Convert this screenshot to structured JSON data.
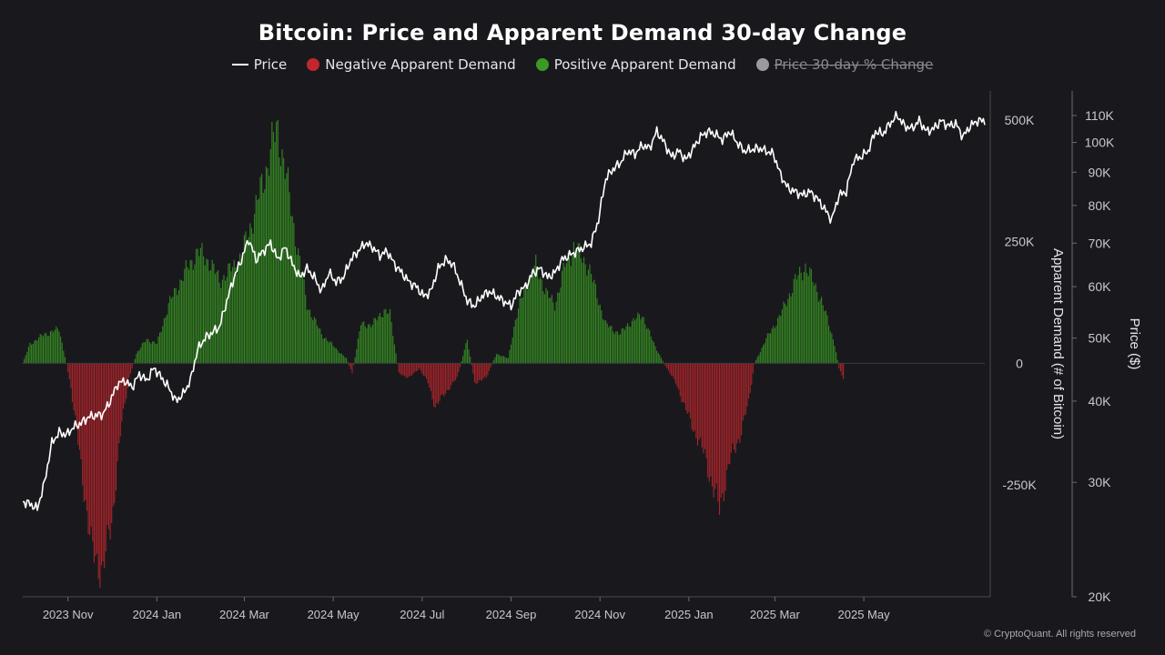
{
  "chart_data": {
    "type": "bar+line",
    "title": "Bitcoin: Price and Apparent Demand 30-day Change",
    "legend": [
      {
        "key": "price",
        "label": "Price",
        "color": "#ffffff",
        "kind": "line",
        "visible": true
      },
      {
        "key": "negative",
        "label": "Negative Apparent Demand",
        "color": "#c1272d",
        "kind": "dot",
        "visible": true
      },
      {
        "key": "positive",
        "label": "Positive Apparent Demand",
        "color": "#3a9a23",
        "kind": "dot",
        "visible": true
      },
      {
        "key": "pct",
        "label": "Price 30-day % Change",
        "color": "#9a9aa0",
        "kind": "dot",
        "visible": false
      }
    ],
    "x_ticks": [
      "2023 Nov",
      "2024 Jan",
      "2024 Mar",
      "2024 May",
      "2024 Jul",
      "2024 Sep",
      "2024 Nov",
      "2025 Jan",
      "2025 Mar",
      "2025 May"
    ],
    "x_range_days": [
      0,
      660
    ],
    "x_tick_days": [
      31,
      92,
      152,
      213,
      274,
      335,
      396,
      457,
      516,
      577
    ],
    "y_left": {
      "label": "Apparent Demand (# of Bitcoin)",
      "ticks": [
        "500K",
        "250K",
        "0",
        "-250K"
      ],
      "tick_values": [
        500000,
        250000,
        0,
        -250000
      ],
      "range": [
        -480000,
        560000
      ]
    },
    "y_right": {
      "label": "Price ($)",
      "scale": "log",
      "ticks": [
        "110K",
        "100K",
        "90K",
        "80K",
        "70K",
        "60K",
        "50K",
        "40K",
        "30K",
        "20K"
      ],
      "tick_values": [
        110000,
        100000,
        90000,
        80000,
        70000,
        60000,
        50000,
        40000,
        30000,
        20000
      ],
      "range": [
        20000,
        120000
      ]
    },
    "demand_keypoints": [
      [
        0,
        0
      ],
      [
        5,
        40000
      ],
      [
        15,
        60000
      ],
      [
        25,
        70000
      ],
      [
        30,
        0
      ],
      [
        33,
        -50000
      ],
      [
        40,
        -210000
      ],
      [
        47,
        -380000
      ],
      [
        55,
        -430000
      ],
      [
        62,
        -300000
      ],
      [
        68,
        -120000
      ],
      [
        73,
        -30000
      ],
      [
        78,
        20000
      ],
      [
        85,
        50000
      ],
      [
        92,
        40000
      ],
      [
        100,
        120000
      ],
      [
        110,
        180000
      ],
      [
        120,
        230000
      ],
      [
        128,
        210000
      ],
      [
        135,
        170000
      ],
      [
        142,
        190000
      ],
      [
        150,
        220000
      ],
      [
        160,
        320000
      ],
      [
        168,
        410000
      ],
      [
        172,
        460000
      ],
      [
        175,
        480000
      ],
      [
        180,
        400000
      ],
      [
        185,
        300000
      ],
      [
        195,
        120000
      ],
      [
        205,
        60000
      ],
      [
        215,
        30000
      ],
      [
        222,
        10000
      ],
      [
        226,
        -20000
      ],
      [
        232,
        80000
      ],
      [
        240,
        80000
      ],
      [
        248,
        110000
      ],
      [
        252,
        100000
      ],
      [
        258,
        -20000
      ],
      [
        265,
        -30000
      ],
      [
        272,
        -10000
      ],
      [
        278,
        -40000
      ],
      [
        283,
        -90000
      ],
      [
        290,
        -60000
      ],
      [
        298,
        -30000
      ],
      [
        305,
        50000
      ],
      [
        310,
        -40000
      ],
      [
        318,
        -30000
      ],
      [
        325,
        20000
      ],
      [
        333,
        10000
      ],
      [
        338,
        90000
      ],
      [
        345,
        160000
      ],
      [
        352,
        200000
      ],
      [
        360,
        140000
      ],
      [
        365,
        120000
      ],
      [
        372,
        200000
      ],
      [
        378,
        240000
      ],
      [
        388,
        200000
      ],
      [
        395,
        130000
      ],
      [
        400,
        80000
      ],
      [
        410,
        60000
      ],
      [
        415,
        80000
      ],
      [
        425,
        100000
      ],
      [
        433,
        40000
      ],
      [
        440,
        0
      ],
      [
        448,
        -40000
      ],
      [
        458,
        -120000
      ],
      [
        468,
        -190000
      ],
      [
        473,
        -250000
      ],
      [
        478,
        -300000
      ],
      [
        485,
        -200000
      ],
      [
        492,
        -150000
      ],
      [
        498,
        -80000
      ],
      [
        502,
        0
      ],
      [
        510,
        50000
      ],
      [
        520,
        100000
      ],
      [
        530,
        170000
      ],
      [
        537,
        200000
      ],
      [
        542,
        170000
      ],
      [
        548,
        130000
      ],
      [
        553,
        80000
      ],
      [
        557,
        40000
      ],
      [
        560,
        -10000
      ],
      [
        563,
        -30000
      ]
    ],
    "price_keypoints": [
      [
        0,
        28000
      ],
      [
        5,
        27800
      ],
      [
        10,
        27300
      ],
      [
        15,
        30000
      ],
      [
        20,
        34500
      ],
      [
        25,
        35800
      ],
      [
        30,
        35500
      ],
      [
        35,
        36500
      ],
      [
        40,
        37000
      ],
      [
        45,
        37800
      ],
      [
        50,
        38000
      ],
      [
        55,
        38200
      ],
      [
        60,
        40000
      ],
      [
        65,
        42500
      ],
      [
        70,
        43000
      ],
      [
        75,
        42000
      ],
      [
        80,
        44000
      ],
      [
        85,
        43000
      ],
      [
        90,
        45000
      ],
      [
        95,
        43500
      ],
      [
        100,
        42000
      ],
      [
        105,
        40000
      ],
      [
        110,
        41000
      ],
      [
        115,
        43000
      ],
      [
        120,
        48000
      ],
      [
        125,
        50000
      ],
      [
        130,
        51000
      ],
      [
        135,
        52000
      ],
      [
        140,
        57000
      ],
      [
        145,
        62000
      ],
      [
        150,
        66000
      ],
      [
        155,
        71000
      ],
      [
        160,
        66000
      ],
      [
        165,
        68000
      ],
      [
        170,
        70000
      ],
      [
        175,
        66000
      ],
      [
        180,
        69000
      ],
      [
        185,
        65000
      ],
      [
        190,
        62000
      ],
      [
        195,
        64000
      ],
      [
        200,
        62000
      ],
      [
        205,
        59000
      ],
      [
        210,
        63000
      ],
      [
        215,
        61000
      ],
      [
        220,
        62000
      ],
      [
        225,
        66000
      ],
      [
        230,
        68000
      ],
      [
        235,
        70000
      ],
      [
        240,
        69000
      ],
      [
        245,
        67000
      ],
      [
        250,
        68000
      ],
      [
        255,
        65000
      ],
      [
        260,
        63000
      ],
      [
        265,
        61000
      ],
      [
        270,
        60000
      ],
      [
        275,
        58000
      ],
      [
        280,
        59000
      ],
      [
        285,
        64000
      ],
      [
        290,
        66000
      ],
      [
        295,
        65000
      ],
      [
        300,
        61000
      ],
      [
        305,
        57000
      ],
      [
        310,
        56000
      ],
      [
        315,
        58000
      ],
      [
        320,
        59000
      ],
      [
        325,
        58000
      ],
      [
        330,
        57000
      ],
      [
        335,
        56000
      ],
      [
        340,
        59000
      ],
      [
        345,
        60000
      ],
      [
        350,
        63000
      ],
      [
        355,
        64000
      ],
      [
        360,
        62000
      ],
      [
        365,
        63000
      ],
      [
        370,
        66000
      ],
      [
        375,
        67000
      ],
      [
        380,
        68000
      ],
      [
        385,
        69000
      ],
      [
        390,
        70000
      ],
      [
        395,
        76000
      ],
      [
        400,
        88000
      ],
      [
        405,
        91000
      ],
      [
        410,
        93000
      ],
      [
        415,
        97000
      ],
      [
        420,
        96000
      ],
      [
        425,
        99000
      ],
      [
        430,
        98000
      ],
      [
        435,
        104000
      ],
      [
        440,
        100000
      ],
      [
        445,
        95000
      ],
      [
        450,
        97000
      ],
      [
        455,
        94000
      ],
      [
        460,
        98000
      ],
      [
        465,
        102000
      ],
      [
        470,
        104000
      ],
      [
        475,
        103000
      ],
      [
        480,
        101000
      ],
      [
        485,
        104000
      ],
      [
        490,
        100000
      ],
      [
        495,
        97000
      ],
      [
        500,
        97500
      ],
      [
        505,
        98000
      ],
      [
        510,
        97000
      ],
      [
        515,
        96000
      ],
      [
        520,
        89000
      ],
      [
        525,
        85000
      ],
      [
        530,
        84000
      ],
      [
        535,
        83000
      ],
      [
        540,
        84000
      ],
      [
        545,
        82000
      ],
      [
        550,
        79000
      ],
      [
        555,
        76000
      ],
      [
        560,
        83000
      ],
      [
        565,
        84000
      ],
      [
        570,
        94000
      ],
      [
        575,
        95000
      ],
      [
        580,
        97000
      ],
      [
        585,
        104000
      ],
      [
        590,
        103000
      ],
      [
        595,
        107000
      ],
      [
        600,
        110000
      ],
      [
        605,
        106000
      ],
      [
        610,
        105000
      ],
      [
        615,
        108000
      ],
      [
        620,
        104000
      ],
      [
        625,
        105000
      ],
      [
        630,
        108000
      ],
      [
        635,
        106000
      ],
      [
        640,
        107000
      ],
      [
        645,
        102000
      ],
      [
        650,
        106000
      ],
      [
        655,
        108000
      ],
      [
        660,
        108000
      ]
    ]
  },
  "footer": {
    "copyright": "© CryptoQuant. All rights reserved"
  }
}
